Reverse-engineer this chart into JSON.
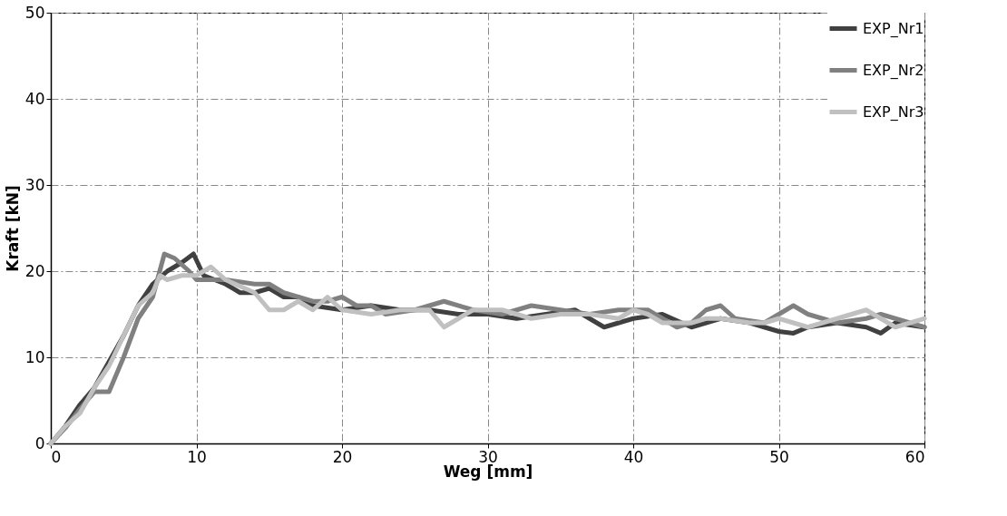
{
  "chart_data": {
    "type": "line",
    "xlabel": "Weg [mm]",
    "ylabel": "Kraft [kN]",
    "xlim": [
      0,
      60
    ],
    "ylim": [
      0,
      50
    ],
    "xticks": [
      0,
      10,
      20,
      30,
      40,
      50,
      60
    ],
    "yticks": [
      0,
      10,
      20,
      30,
      40,
      50
    ],
    "grid": true,
    "legend": "top right",
    "line_style": "solid",
    "marker": "none",
    "series": [
      {
        "name": "EXP_Nr1",
        "color": "#404040",
        "x": [
          0,
          1,
          2,
          3,
          4,
          5,
          6,
          7,
          8,
          9,
          9.8,
          10.5,
          12,
          13,
          14,
          15,
          16,
          17,
          18,
          20,
          22,
          24,
          26,
          28,
          30,
          32,
          34,
          36,
          38,
          40,
          42,
          44,
          46,
          48,
          50,
          51,
          52,
          54,
          56,
          57,
          58,
          60
        ],
        "values": [
          0,
          2,
          4.5,
          6.5,
          9.5,
          12.5,
          16,
          18.5,
          20,
          21,
          22,
          19.5,
          18.5,
          17.5,
          17.5,
          18,
          17,
          17,
          16,
          15.5,
          16,
          15.5,
          15.5,
          15,
          15,
          14.5,
          15,
          15.5,
          13.5,
          14.5,
          15,
          13.5,
          14.5,
          14,
          13,
          12.8,
          13.5,
          14,
          13.5,
          12.8,
          14,
          13.5
        ]
      },
      {
        "name": "EXP_Nr2",
        "color": "#808080",
        "x": [
          0,
          1,
          2,
          3,
          4,
          5,
          6,
          7,
          7.8,
          8.5,
          9.5,
          10,
          12,
          14,
          15,
          16,
          18,
          19,
          20,
          21,
          22,
          23,
          25,
          27,
          29,
          31,
          33,
          35,
          37,
          39,
          41,
          43,
          44,
          45,
          46,
          47,
          49,
          50,
          51,
          52,
          54,
          56,
          57,
          58,
          60
        ],
        "values": [
          0,
          1.8,
          4,
          6,
          6,
          10,
          14.5,
          17,
          22,
          21.5,
          20,
          19,
          19,
          18.5,
          18.5,
          17.5,
          16.5,
          16.5,
          17,
          16,
          16,
          15,
          15.5,
          16.5,
          15.5,
          15,
          16,
          15.5,
          15,
          15.5,
          15.5,
          13.5,
          14,
          15.5,
          16,
          14.5,
          14,
          15,
          16,
          15,
          14,
          14.5,
          15,
          14.5,
          13.5
        ]
      },
      {
        "name": "EXP_Nr3",
        "color": "#c0c0c0",
        "x": [
          0,
          1,
          2,
          3,
          4,
          5,
          6,
          7,
          7.5,
          8,
          9,
          10,
          11,
          12,
          14,
          15,
          16,
          17,
          18,
          19,
          20,
          22,
          24,
          26,
          27,
          28,
          29,
          31,
          33,
          35,
          37,
          39,
          40,
          41,
          42,
          44,
          45,
          46,
          48,
          49,
          50,
          51,
          52,
          54,
          56,
          57,
          58,
          60
        ],
        "values": [
          0,
          2,
          3.5,
          6.5,
          9,
          12.5,
          16,
          17.5,
          19.5,
          19,
          19.5,
          19.5,
          20.5,
          19,
          17.5,
          15.5,
          15.5,
          16.5,
          15.5,
          17,
          15.5,
          15,
          15.5,
          15.5,
          13.5,
          14.5,
          15.5,
          15.5,
          14.5,
          15,
          15,
          14.5,
          15.5,
          15,
          14,
          14,
          14.5,
          14.5,
          14,
          14,
          14.5,
          14,
          13.5,
          14.5,
          15.5,
          14.5,
          13.5,
          14.5
        ]
      }
    ]
  }
}
